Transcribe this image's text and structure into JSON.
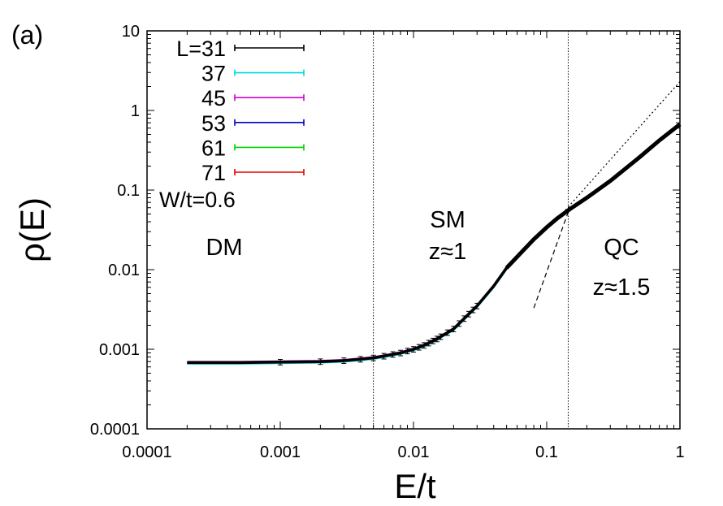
{
  "chart_data": {
    "type": "line",
    "panel_label": "(a)",
    "xlabel": "E/t",
    "ylabel": "ρ(E)",
    "x_scale": "log",
    "y_scale": "log",
    "xlim": [
      0.0001,
      1
    ],
    "ylim": [
      0.0001,
      10
    ],
    "x_ticks": [
      {
        "value": 0.0001,
        "label": "0.0001"
      },
      {
        "value": 0.001,
        "label": "0.001"
      },
      {
        "value": 0.01,
        "label": "0.01"
      },
      {
        "value": 0.1,
        "label": "0.1"
      },
      {
        "value": 1,
        "label": "1"
      }
    ],
    "y_ticks": [
      {
        "value": 0.0001,
        "label": "0.0001"
      },
      {
        "value": 0.001,
        "label": "0.001"
      },
      {
        "value": 0.01,
        "label": "0.01"
      },
      {
        "value": 0.1,
        "label": "0.1"
      },
      {
        "value": 1,
        "label": "1"
      },
      {
        "value": 10,
        "label": "10"
      }
    ],
    "grid": false,
    "legend_position": "top-left",
    "legend_extra": "W/t=0.6",
    "series": [
      {
        "name": "L=31",
        "color": "#000000"
      },
      {
        "name": "37",
        "color": "#00d8d8"
      },
      {
        "name": "45",
        "color": "#d000d0"
      },
      {
        "name": "53",
        "color": "#0000c8"
      },
      {
        "name": "61",
        "color": "#00d000"
      },
      {
        "name": "71",
        "color": "#e00000"
      }
    ],
    "curve": {
      "x": [
        0.0002,
        0.0005,
        0.001,
        0.002,
        0.003,
        0.004,
        0.005,
        0.006,
        0.008,
        0.01,
        0.012,
        0.015,
        0.02,
        0.025,
        0.03,
        0.04,
        0.05,
        0.06,
        0.08,
        0.1,
        0.12,
        0.15,
        0.2,
        0.3,
        0.5,
        0.7,
        1.0
      ],
      "y": [
        0.00068,
        0.00068,
        0.00069,
        0.0007,
        0.00072,
        0.00075,
        0.00078,
        0.00082,
        0.0009,
        0.001,
        0.00112,
        0.00135,
        0.0018,
        0.0026,
        0.0035,
        0.0062,
        0.0105,
        0.0145,
        0.024,
        0.034,
        0.044,
        0.058,
        0.08,
        0.13,
        0.26,
        0.42,
        0.67
      ]
    },
    "error_bars": {
      "x": [
        0.001,
        0.002,
        0.003,
        0.004,
        0.005,
        0.006,
        0.007,
        0.008,
        0.009,
        0.01,
        0.011,
        0.012,
        0.013,
        0.014,
        0.015,
        0.016,
        0.018,
        0.02,
        0.022,
        0.024,
        0.026,
        0.028,
        0.03
      ],
      "rel_err": 0.08
    },
    "vertical_lines": [
      0.005,
      0.145
    ],
    "fit_lines": [
      {
        "style": "dotted",
        "x": [
          0.12,
          1.0
        ],
        "y": [
          0.043,
          2.3
        ]
      },
      {
        "style": "dashed",
        "x": [
          0.08,
          0.15
        ],
        "y": [
          0.0033,
          0.062
        ]
      }
    ],
    "regions": [
      {
        "lines": [
          "DM"
        ]
      },
      {
        "lines": [
          "SM",
          "z≈1"
        ]
      },
      {
        "lines": [
          "QC",
          "z≈1.5"
        ]
      }
    ]
  }
}
